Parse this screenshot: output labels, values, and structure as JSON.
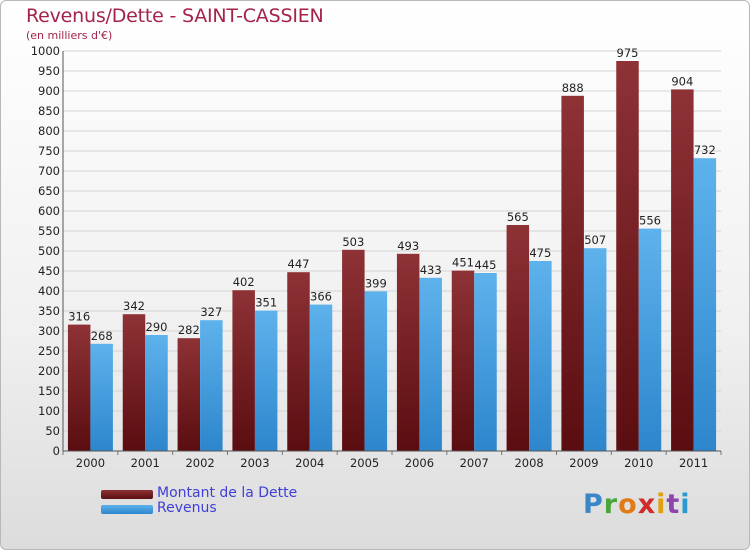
{
  "header": {
    "title": "Revenus/Dette - SAINT-CASSIEN",
    "unit": "(en milliers d'€)"
  },
  "legend": [
    {
      "label": "Montant de la Dette",
      "color": "#7a1e22"
    },
    {
      "label": "Revenus",
      "color": "#3c9ee0"
    }
  ],
  "brand": {
    "letters": [
      "P",
      "r",
      "o",
      "x",
      "i",
      "t",
      "i"
    ],
    "colors": [
      "#3a86c8",
      "#4aa63a",
      "#e07b16",
      "#d02a2a",
      "#e0a010",
      "#8e44ad",
      "#2a9ad0"
    ]
  },
  "chart_data": {
    "type": "bar",
    "title": "Revenus/Dette - SAINT-CASSIEN",
    "ylabel": "(en milliers d'€)",
    "xlabel": "",
    "categories": [
      "2000",
      "2001",
      "2002",
      "2003",
      "2004",
      "2005",
      "2006",
      "2007",
      "2008",
      "2009",
      "2010",
      "2011"
    ],
    "series": [
      {
        "name": "Montant de la Dette",
        "color": "#7a1e22",
        "values": [
          316,
          342,
          282,
          402,
          447,
          503,
          493,
          451,
          565,
          888,
          975,
          904
        ]
      },
      {
        "name": "Revenus",
        "color": "#3c9ee0",
        "values": [
          268,
          290,
          327,
          351,
          366,
          399,
          433,
          445,
          475,
          507,
          556,
          732
        ]
      }
    ],
    "ylim": [
      0,
      1000
    ],
    "ytick_step": 50,
    "grid": true,
    "legend_position": "bottom-left"
  }
}
